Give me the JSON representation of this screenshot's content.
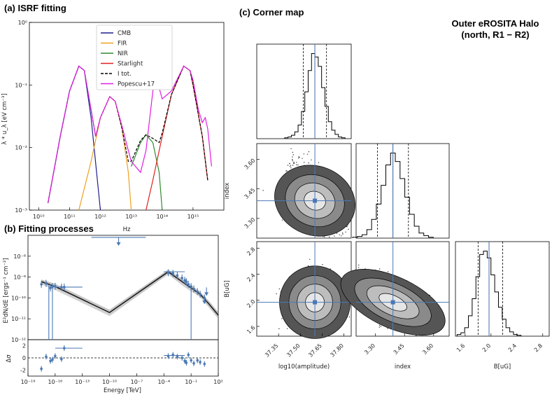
{
  "chart_data": [
    {
      "type": "line",
      "title": "(a) ISRF fitting",
      "xlabel": "Hz",
      "ylabel": "λ * u_λ [eV cm⁻³]",
      "xscale": "log",
      "yscale": "log",
      "xlim": [
        5000000000.0,
        1e+16
      ],
      "ylim": [
        0.001,
        1
      ],
      "xticks": [
        "10¹⁰",
        "10¹¹",
        "10¹²",
        "10¹³",
        "10¹⁴",
        "10¹⁵"
      ],
      "yticks": [
        "10⁰",
        "10⁻¹",
        "10⁻²",
        "10⁻³"
      ],
      "legend_position": "top-center",
      "series": [
        {
          "name": "CMB",
          "color": "#1f1f8f",
          "dash": false,
          "x": [
            20000000000.0,
            50000000000.0,
            100000000000.0,
            200000000000.0,
            300000000000.0,
            500000000000.0,
            800000000000.0,
            1000000000000.0
          ],
          "y": [
            0.0013,
            0.015,
            0.08,
            0.2,
            0.17,
            0.03,
            0.003,
            0.001
          ]
        },
        {
          "name": "FIR",
          "color": "#f0a020",
          "dash": false,
          "x": [
            200000000000.0,
            500000000000.0,
            1000000000000.0,
            2000000000000.0,
            3000000000000.0,
            5000000000000.0,
            8000000000000.0,
            10000000000000.0
          ],
          "y": [
            0.001,
            0.006,
            0.03,
            0.065,
            0.055,
            0.02,
            0.004,
            0.001
          ]
        },
        {
          "name": "NIR",
          "color": "#2e8b2e",
          "dash": false,
          "x": [
            10000000000000.0,
            20000000000000.0,
            30000000000000.0,
            50000000000000.0,
            80000000000000.0,
            100000000000000.0
          ],
          "y": [
            0.005,
            0.012,
            0.016,
            0.012,
            0.004,
            0.001
          ]
        },
        {
          "name": "Starlight",
          "color": "#e02020",
          "dash": false,
          "x": [
            30000000000000.0,
            50000000000000.0,
            100000000000000.0,
            200000000000000.0,
            500000000000000.0,
            800000000000000.0,
            1000000000000000.0,
            2000000000000000.0,
            3000000000000000.0
          ],
          "y": [
            0.001,
            0.003,
            0.015,
            0.07,
            0.2,
            0.17,
            0.1,
            0.015,
            0.003
          ]
        },
        {
          "name": "I tot.",
          "color": "#000000",
          "dash": true,
          "x": [
            20000000000.0,
            50000000000.0,
            100000000000.0,
            200000000000.0,
            300000000000.0,
            500000000000.0,
            700000000000.0,
            1000000000000.0,
            2000000000000.0,
            3000000000000.0,
            5000000000000.0,
            8000000000000.0,
            10000000000000.0,
            20000000000000.0,
            30000000000000.0,
            50000000000000.0,
            80000000000000.0,
            100000000000000.0,
            200000000000000.0,
            500000000000000.0,
            800000000000000.0,
            1000000000000000.0,
            2000000000000000.0,
            3000000000000000.0
          ],
          "y": [
            0.0013,
            0.015,
            0.08,
            0.2,
            0.17,
            0.04,
            0.015,
            0.03,
            0.065,
            0.055,
            0.02,
            0.006,
            0.006,
            0.013,
            0.016,
            0.014,
            0.012,
            0.017,
            0.07,
            0.2,
            0.17,
            0.1,
            0.015,
            0.003
          ]
        },
        {
          "name": "Popescu+17",
          "color": "#e020e0",
          "dash": false,
          "x": [
            20000000000.0,
            50000000000.0,
            100000000000.0,
            200000000000.0,
            300000000000.0,
            500000000000.0,
            700000000000.0,
            1000000000000.0,
            2000000000000.0,
            3000000000000.0,
            5000000000000.0,
            8000000000000.0,
            10000000000000.0,
            20000000000000.0,
            30000000000000.0,
            50000000000000.0,
            60000000000000.0,
            80000000000000.0,
            100000000000000.0,
            200000000000000.0,
            500000000000000.0,
            800000000000000.0,
            1000000000000000.0,
            1500000000000000.0,
            2000000000000000.0,
            2500000000000000.0,
            3000000000000000.0,
            4000000000000000.0
          ],
          "y": [
            0.0013,
            0.015,
            0.08,
            0.2,
            0.17,
            0.04,
            0.015,
            0.03,
            0.065,
            0.055,
            0.022,
            0.009,
            0.006,
            0.004,
            0.009,
            0.08,
            0.12,
            0.09,
            0.06,
            0.08,
            0.2,
            0.17,
            0.12,
            0.04,
            0.025,
            0.03,
            0.02,
            0.005
          ]
        }
      ]
    },
    {
      "type": "scatter",
      "title": "(b) Fitting processes",
      "xlabel": "Energy [TeV]",
      "ylabel": "E²dN/dE [ergs⁻¹ cm⁻²]",
      "xscale": "log",
      "yscale": "log",
      "xlim": [
        1e-19,
        100
      ],
      "ylim": [
        1e-12,
        1e-07
      ],
      "xticks": [
        "10⁻¹⁹",
        "10⁻¹⁶",
        "10⁻¹³",
        "10⁻¹⁰",
        "10⁻⁷",
        "10⁻⁴",
        "10⁻¹",
        "10²"
      ],
      "yticks": [
        "10⁻⁸",
        "10⁻⁹",
        "10⁻¹⁰",
        "10⁻¹¹",
        "10⁻¹²"
      ],
      "model_curve": {
        "x": [
          3e-18,
          1e-16,
          1e-10,
          0.0003,
          0.01,
          0.1,
          1,
          10,
          100
        ],
        "y": [
          6e-10,
          3.5e-10,
          2e-11,
          1.8e-09,
          6e-10,
          3e-10,
          1.5e-10,
          5e-11,
          1.5e-11
        ]
      },
      "data_points": {
        "x": [
          3e-18,
          1e-17,
          3e-17,
          5e-17,
          1e-16,
          5e-16,
          1e-15,
          0.0003,
          0.001,
          0.003,
          0.01,
          0.02,
          0.03,
          0.05,
          0.1,
          0.2,
          0.5,
          1,
          3
        ],
        "y": [
          4.5e-10,
          5e-10,
          3e-10,
          3.5e-10,
          3.6e-10,
          3.3e-10,
          3.3e-10,
          1.6e-09,
          1.5e-09,
          1.2e-09,
          9e-10,
          7e-10,
          6e-10,
          4.5e-10,
          3.5e-10,
          2.7e-10,
          2e-10,
          1.5e-10,
          1e-10
        ]
      },
      "upper_limits": {
        "x": [
          1e-09,
          3,
          5
        ],
        "y": [
          5e-08,
          8e-11,
          2e-10
        ]
      },
      "residual_panel": {
        "ylabel": "Δσ",
        "ylim": [
          -3,
          3
        ],
        "yticks": [
          "2",
          "0",
          "-2"
        ],
        "x": [
          3e-18,
          1e-17,
          3e-17,
          5e-17,
          1e-16,
          5e-16,
          1e-15,
          0.0003,
          0.001,
          0.003,
          0.01,
          0.02,
          0.03,
          0.05,
          0.1,
          0.2,
          0.5,
          1,
          3
        ],
        "y": [
          -1.8,
          0.2,
          -0.5,
          -0.3,
          0.3,
          -0.2,
          1.6,
          0.3,
          0.5,
          0.2,
          0,
          -0.5,
          -0.8,
          0.5,
          -0.4,
          -0.9,
          -0.4,
          -0.7,
          -1.0
        ]
      }
    },
    {
      "type": "scatter",
      "title": "(c) Corner map",
      "subtitle": "Outer eROSITA Halo\n(north, R1 − R2)",
      "parameters": [
        "log10(amplitude)",
        "index",
        "B[uG]"
      ],
      "ranges": {
        "log10(amplitude)": [
          37.2,
          37.85
        ],
        "index": [
          3.2,
          3.68
        ],
        "B[uG]": [
          1.45,
          2.9
        ]
      },
      "ticks": {
        "log10(amplitude)": [
          "37.35",
          "37.50",
          "37.65",
          "37.80"
        ],
        "index": [
          "3.30",
          "3.45",
          "3.60"
        ],
        "B[uG]": [
          "1.6",
          "2.0",
          "2.4",
          "2.8"
        ]
      },
      "best_fit": {
        "log10(amplitude)": 37.6,
        "index": 3.39,
        "B[uG]": 1.97
      },
      "quantiles": {
        "log10(amplitude)": [
          37.52,
          37.6,
          37.68
        ],
        "index": [
          3.31,
          3.39,
          3.47
        ],
        "B[uG]": [
          1.8,
          1.97,
          2.18
        ]
      },
      "histograms": {
        "log10(amplitude)": [
          1,
          2,
          4,
          8,
          16,
          32,
          55,
          80,
          100,
          96,
          85,
          60,
          38,
          20,
          10,
          5,
          2,
          1
        ],
        "index": [
          1,
          2,
          4,
          10,
          22,
          40,
          62,
          86,
          100,
          90,
          70,
          48,
          28,
          14,
          6,
          3,
          1
        ],
        "B[uG]": [
          2,
          4,
          10,
          24,
          44,
          70,
          96,
          100,
          92,
          72,
          52,
          34,
          20,
          10,
          5,
          2,
          1
        ]
      },
      "correlations": {
        "index_vs_log10(amplitude)": -0.6,
        "B_vs_log10(amplitude)": 0.05,
        "B_vs_index": -0.7
      }
    }
  ]
}
